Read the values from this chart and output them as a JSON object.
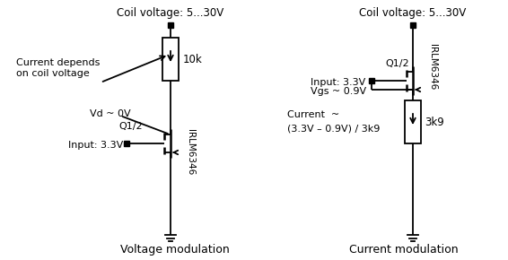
{
  "bg_color": "#ffffff",
  "line_color": "#000000",
  "fig_width": 5.66,
  "fig_height": 2.9,
  "dpi": 100,
  "title_left": "Voltage modulation",
  "title_right": "Current modulation",
  "left_labels": {
    "coil_voltage": "Coil voltage: 5...30V",
    "current_depends": "Current depends",
    "on_coil_voltage": "on coil voltage",
    "vd": "Vd ~ 0V",
    "q12": "Q1/2",
    "input": "Input: 3.3V",
    "r10k": "10k",
    "irlm": "IRLM6346"
  },
  "right_labels": {
    "coil_voltage": "Coil voltage: 5...30V",
    "q12": "Q1/2",
    "input": "Input: 3.3V",
    "vgs": "Vgs ~ 0.9V",
    "current": "Current  ~",
    "current_formula": "(3.3V – 0.9V) / 3k9",
    "r3k9": "3k9",
    "irlm": "IRLM6346"
  }
}
